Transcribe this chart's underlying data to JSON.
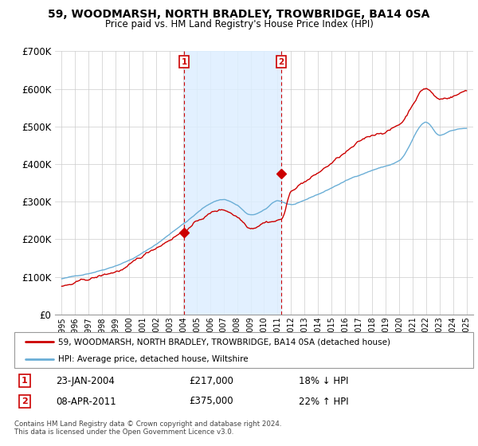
{
  "title": "59, WOODMARSH, NORTH BRADLEY, TROWBRIDGE, BA14 0SA",
  "subtitle": "Price paid vs. HM Land Registry's House Price Index (HPI)",
  "ylim": [
    0,
    700000
  ],
  "yticks": [
    0,
    100000,
    200000,
    300000,
    400000,
    500000,
    600000,
    700000
  ],
  "ytick_labels": [
    "£0",
    "£100K",
    "£200K",
    "£300K",
    "£400K",
    "£500K",
    "£600K",
    "£700K"
  ],
  "sale1_year": 2004.08,
  "sale1_price": 217000,
  "sale1_label": "23-JAN-2004",
  "sale1_note": "18% ↓ HPI",
  "sale2_year": 2011.28,
  "sale2_price": 375000,
  "sale2_label": "08-APR-2011",
  "sale2_note": "22% ↑ HPI",
  "hpi_color": "#6aaed6",
  "sale_color": "#cc0000",
  "shade_color": "#ddeeff",
  "legend_label1": "59, WOODMARSH, NORTH BRADLEY, TROWBRIDGE, BA14 0SA (detached house)",
  "legend_label2": "HPI: Average price, detached house, Wiltshire",
  "footer": "Contains HM Land Registry data © Crown copyright and database right 2024.\nThis data is licensed under the Open Government Licence v3.0."
}
